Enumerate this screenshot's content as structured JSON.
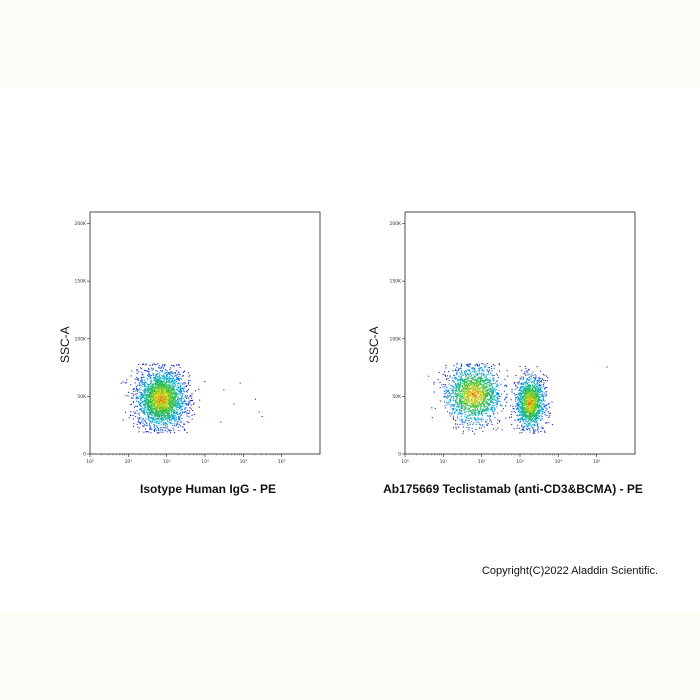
{
  "chart_data": [
    {
      "type": "scatter",
      "title": "",
      "xlabel": "Isotype Human IgG - PE",
      "ylabel": "SSC-A",
      "x_scale": "log",
      "xlim": [
        1,
        1000000
      ],
      "ylim": [
        0,
        210000
      ],
      "x_tick_labels": [
        "10⁰",
        "10¹",
        "10²",
        "10³",
        "10⁴",
        "10⁵"
      ],
      "y_tick_labels": [
        "0",
        "50K",
        "100K",
        "150K",
        "200K"
      ],
      "color_scale": "density (blue-green-yellow-red)",
      "populations": [
        {
          "x_center": 70,
          "y_center": 48000,
          "x_log_spread": 0.3,
          "y_spread": 12000,
          "y_max": 79000,
          "events": 2600
        }
      ],
      "outliers": [
        [
          3000,
          56000
        ],
        [
          5500,
          44000
        ],
        [
          25000,
          37000
        ],
        [
          30000,
          33000
        ],
        [
          2500,
          28000
        ],
        [
          8000,
          62000
        ],
        [
          20000,
          48000
        ]
      ]
    },
    {
      "type": "scatter",
      "title": "",
      "xlabel": "Ab175669 Teclistamab (anti-CD3&BCMA) - PE",
      "ylabel": "SSC-A",
      "x_scale": "log",
      "xlim": [
        1,
        1000000
      ],
      "ylim": [
        0,
        210000
      ],
      "x_tick_labels": [
        "10⁰",
        "10¹",
        "10²",
        "10³",
        "10⁴",
        "10⁵"
      ],
      "y_tick_labels": [
        "0",
        "50K",
        "100K",
        "150K",
        "200K"
      ],
      "color_scale": "density (blue-green-yellow-red)",
      "populations": [
        {
          "x_center": 60,
          "y_center": 52000,
          "x_log_spread": 0.35,
          "y_spread": 12000,
          "y_max": 79000,
          "events": 1700
        },
        {
          "x_center": 1800,
          "y_center": 45000,
          "x_log_spread": 0.18,
          "y_spread": 11000,
          "y_max": 79000,
          "events": 1500
        }
      ],
      "outliers": [
        [
          180000,
          76000
        ],
        [
          4,
          68000
        ],
        [
          6,
          40000
        ],
        [
          5,
          32000
        ],
        [
          8,
          58000
        ],
        [
          250,
          44000
        ]
      ]
    }
  ],
  "copyright": "Copyright(C)2022 Aladdin Scientific."
}
